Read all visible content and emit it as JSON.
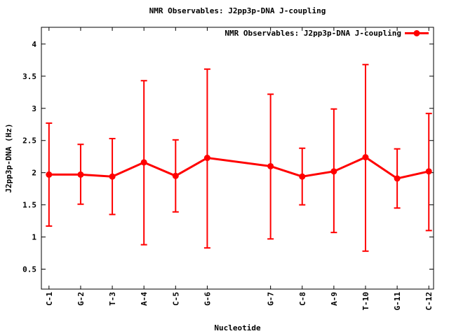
{
  "title": "NMR Observables: J2pp3p-DNA J-coupling",
  "legend": {
    "label": "NMR Observables: J2pp3p-DNA J-coupling",
    "position": "top-right-inside"
  },
  "colors": {
    "series": "#ff0000",
    "axis": "#000000",
    "background": "#ffffff"
  },
  "chart_data": {
    "type": "line",
    "title": "NMR Observables: J2pp3p-DNA J-coupling",
    "xlabel": "Nucleotide",
    "ylabel": "J2pp3p-DNA (Hz)",
    "grid": false,
    "legend_position": "top-right-inside",
    "categories": [
      "C-1",
      "G-2",
      "T-3",
      "A-4",
      "C-5",
      "G-6",
      "G-7",
      "C-8",
      "A-9",
      "T-10",
      "G-11",
      "C-12"
    ],
    "x_positions": [
      1,
      2,
      3,
      4,
      5,
      6,
      8,
      9,
      10,
      11,
      12,
      13
    ],
    "series": [
      {
        "name": "NMR Observables: J2pp3p-DNA J-coupling",
        "color": "#ff0000",
        "marker": "filled-circle",
        "values": [
          1.97,
          1.97,
          1.94,
          2.16,
          1.95,
          2.23,
          2.1,
          1.94,
          2.02,
          2.24,
          1.91,
          2.02
        ],
        "err_low": [
          1.17,
          1.51,
          1.35,
          0.88,
          1.39,
          0.83,
          0.97,
          1.5,
          1.07,
          0.78,
          1.45,
          1.1
        ],
        "err_high": [
          2.77,
          2.44,
          2.53,
          3.43,
          2.51,
          3.61,
          3.22,
          2.38,
          2.99,
          3.68,
          2.37,
          2.92
        ]
      }
    ],
    "xlim": [
      0.76,
      13.15
    ],
    "ylim": [
      0.19,
      4.26
    ],
    "yticks": [
      0.5,
      1,
      1.5,
      2,
      2.5,
      3,
      3.5,
      4
    ],
    "ytick_labels": [
      "0.5",
      "1",
      "1.5",
      "2",
      "2.5",
      "3",
      "3.5",
      "4"
    ]
  }
}
